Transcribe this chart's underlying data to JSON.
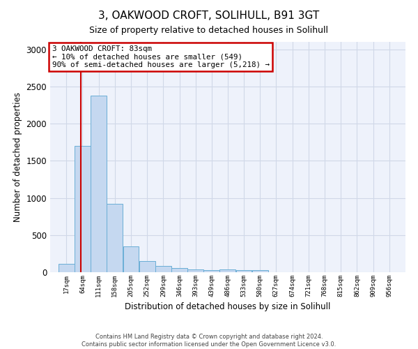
{
  "title": "3, OAKWOOD CROFT, SOLIHULL, B91 3GT",
  "subtitle": "Size of property relative to detached houses in Solihull",
  "xlabel": "Distribution of detached houses by size in Solihull",
  "ylabel": "Number of detached properties",
  "bin_labels": [
    "17sqm",
    "64sqm",
    "111sqm",
    "158sqm",
    "205sqm",
    "252sqm",
    "299sqm",
    "346sqm",
    "393sqm",
    "439sqm",
    "486sqm",
    "533sqm",
    "580sqm",
    "627sqm",
    "674sqm",
    "721sqm",
    "768sqm",
    "815sqm",
    "862sqm",
    "909sqm",
    "956sqm"
  ],
  "bin_edges": [
    17,
    64,
    111,
    158,
    205,
    252,
    299,
    346,
    393,
    439,
    486,
    533,
    580,
    627,
    674,
    721,
    768,
    815,
    862,
    909,
    956
  ],
  "bar_heights": [
    110,
    1700,
    2380,
    920,
    350,
    155,
    85,
    60,
    35,
    25,
    35,
    25,
    30,
    0,
    0,
    0,
    0,
    0,
    0,
    0
  ],
  "bar_color": "#c5d8f0",
  "bar_edge_color": "#6aaed6",
  "grid_color": "#d0d8e8",
  "background_color": "#eef2fb",
  "red_line_x": 83,
  "annotation_text": "3 OAKWOOD CROFT: 83sqm\n← 10% of detached houses are smaller (549)\n90% of semi-detached houses are larger (5,218) →",
  "annotation_box_color": "#cc0000",
  "ylim": [
    0,
    3100
  ],
  "yticks": [
    0,
    500,
    1000,
    1500,
    2000,
    2500,
    3000
  ],
  "footer_line1": "Contains HM Land Registry data © Crown copyright and database right 2024.",
  "footer_line2": "Contains public sector information licensed under the Open Government Licence v3.0."
}
